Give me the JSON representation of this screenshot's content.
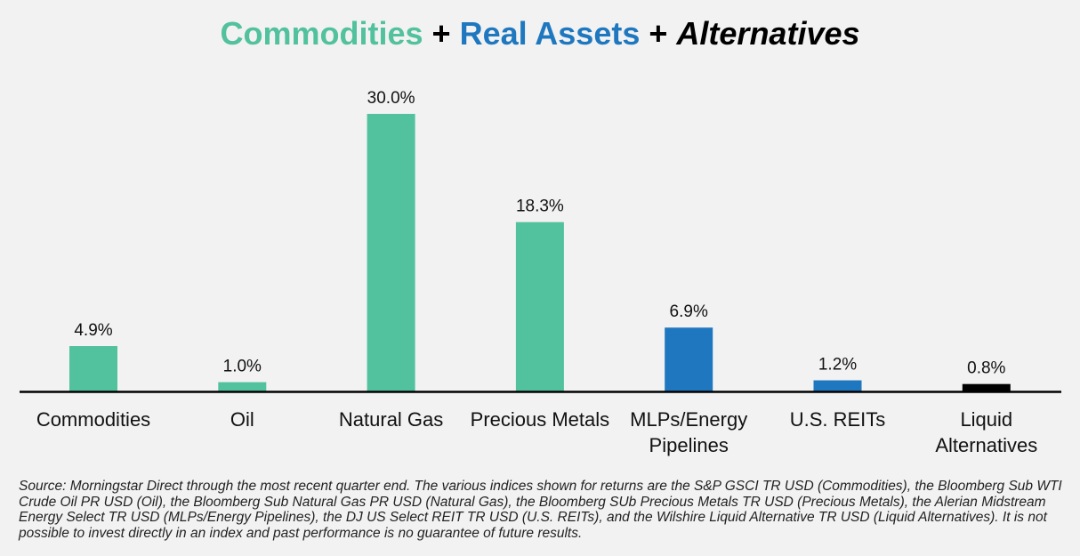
{
  "title": {
    "part1": "Commodities",
    "plus1": "+",
    "part2": "Real Assets",
    "plus2": "+",
    "part3": "Alternatives"
  },
  "colors": {
    "commodities": "#52c19d",
    "real_assets": "#1f78bf",
    "alternatives": "#000000",
    "background": "#f2f2f2"
  },
  "chart_data": {
    "type": "bar",
    "categories": [
      [
        "Commodities"
      ],
      [
        "Oil"
      ],
      [
        "Natural Gas"
      ],
      [
        "Precious Metals"
      ],
      [
        "MLPs/Energy",
        "Pipelines"
      ],
      [
        "U.S. REITs"
      ],
      [
        "Liquid",
        "Alternatives"
      ]
    ],
    "values": [
      4.9,
      1.0,
      30.0,
      18.3,
      6.9,
      1.2,
      0.8
    ],
    "value_labels": [
      "4.9%",
      "1.0%",
      "30.0%",
      "18.3%",
      "6.9%",
      "1.2%",
      "0.8%"
    ],
    "groups": [
      "commodities",
      "commodities",
      "commodities",
      "commodities",
      "real_assets",
      "real_assets",
      "alternatives"
    ],
    "ylim": [
      0,
      34
    ],
    "grid": false,
    "legend": "none"
  },
  "source": "Source: Morningstar Direct through the most recent quarter end.  The various indices shown for returns are the S&P GSCI TR USD (Commodities), the Bloomberg Sub WTI Crude Oil PR USD (Oil), the Bloomberg Sub Natural Gas PR USD (Natural Gas), the Bloomberg SUb Precious Metals TR USD (Precious Metals), the Alerian Midstream Energy Select TR USD (MLPs/Energy Pipelines), the DJ US Select REIT TR USD (U.S. REITs), and the Wilshire Liquid Alternative TR USD (Liquid Alternatives). It is not possible to invest directly in an index and past performance is no guarantee of future results."
}
